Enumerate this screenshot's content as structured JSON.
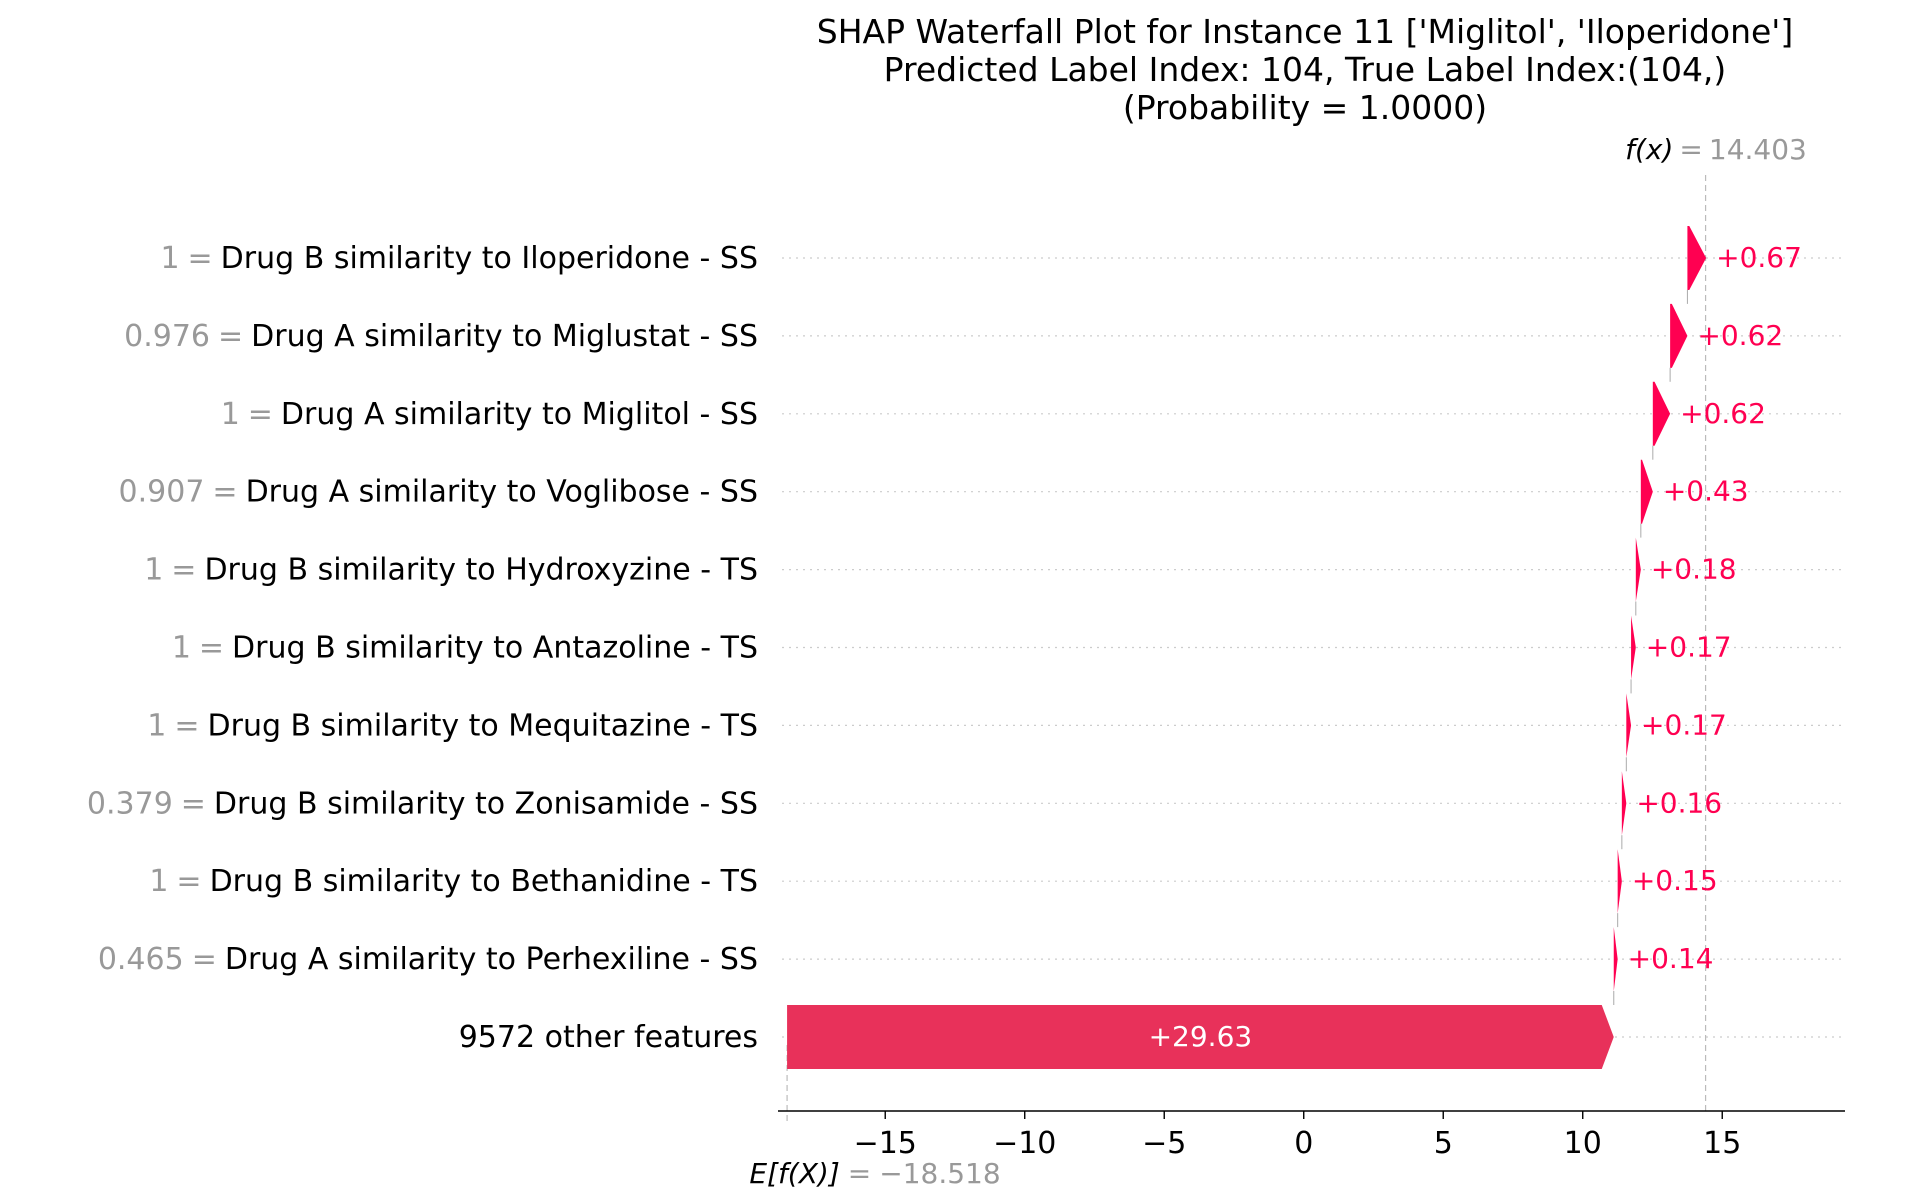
{
  "chart_data": {
    "type": "waterfall",
    "title": [
      "SHAP Waterfall Plot for Instance 11 ['Miglitol', 'Iloperidone']",
      "Predicted Label Index: 104, True Label Index:(104,)",
      "(Probability = 1.0000)"
    ],
    "fx_label": "f(x)",
    "fx_value": "14.403",
    "efx_label": "E[f(X)]",
    "efx_value": "−18.518",
    "base_value": -18.518,
    "final_value": 14.403,
    "xlim": [
      -18.7,
      19.4
    ],
    "xticks": [
      -15,
      -10,
      -5,
      0,
      5,
      10,
      15
    ],
    "xtick_labels": [
      "−15",
      "−10",
      "−5",
      "0",
      "5",
      "10",
      "15"
    ],
    "features": [
      {
        "value": "1",
        "name": "Drug B similarity to Iloperidone - SS",
        "shap": 0.67,
        "label": "+0.67"
      },
      {
        "value": "0.976",
        "name": "Drug A similarity to Miglustat - SS",
        "shap": 0.62,
        "label": "+0.62"
      },
      {
        "value": "1",
        "name": "Drug A similarity to Miglitol - SS",
        "shap": 0.62,
        "label": "+0.62"
      },
      {
        "value": "0.907",
        "name": "Drug A similarity to Voglibose - SS",
        "shap": 0.43,
        "label": "+0.43"
      },
      {
        "value": "1",
        "name": "Drug B similarity to Hydroxyzine - TS",
        "shap": 0.18,
        "label": "+0.18"
      },
      {
        "value": "1",
        "name": "Drug B similarity to Antazoline - TS",
        "shap": 0.17,
        "label": "+0.17"
      },
      {
        "value": "1",
        "name": "Drug B similarity to Mequitazine - TS",
        "shap": 0.17,
        "label": "+0.17"
      },
      {
        "value": "0.379",
        "name": "Drug B similarity to Zonisamide - SS",
        "shap": 0.16,
        "label": "+0.16"
      },
      {
        "value": "1",
        "name": "Drug B similarity to Bethanidine - TS",
        "shap": 0.15,
        "label": "+0.15"
      },
      {
        "value": "0.465",
        "name": "Drug A similarity to Perhexiline - SS",
        "shap": 0.14,
        "label": "+0.14"
      },
      {
        "value": "",
        "name": "9572 other features",
        "shap": 29.63,
        "label": "+29.63"
      }
    ],
    "colors": {
      "positive": "#ff0051",
      "bar_fill": "#e8315a",
      "gray_text": "#999999"
    },
    "grid": "dotted-horizontal"
  }
}
